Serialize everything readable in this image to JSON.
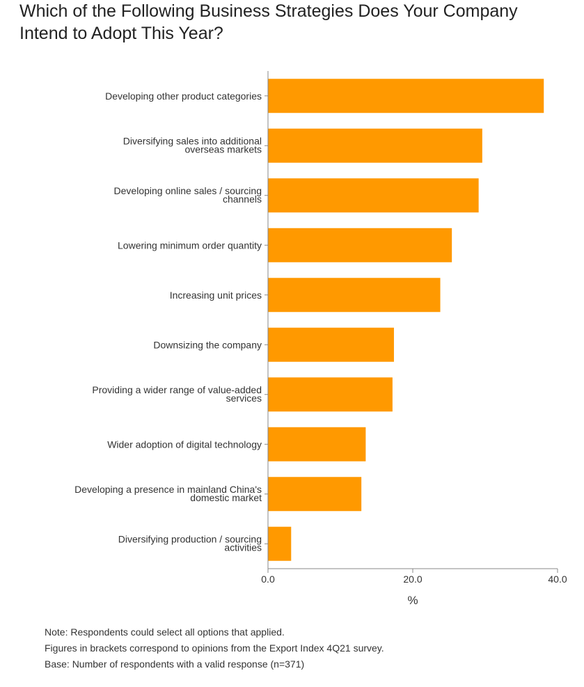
{
  "title": {
    "line1": "Which of the Following Business Strategies Does Your Company",
    "line2": "Intend to Adopt This Year?"
  },
  "colors": {
    "bar": "#FF9900",
    "axis": "#888888",
    "text": "#333333"
  },
  "chart_data": {
    "type": "bar",
    "orientation": "horizontal",
    "categories": [
      [
        "Developing other product categories"
      ],
      [
        "Diversifying sales into additional",
        "overseas markets"
      ],
      [
        "Developing online sales / sourcing",
        "channels"
      ],
      [
        "Lowering minimum order quantity"
      ],
      [
        "Increasing unit prices"
      ],
      [
        "Downsizing the company"
      ],
      [
        "Providing a wider range of value-added",
        "services"
      ],
      [
        "Wider adoption of digital technology"
      ],
      [
        "Developing a presence in mainland China's",
        "domestic market"
      ],
      [
        "Diversifying production / sourcing",
        "activities"
      ]
    ],
    "values": [
      38.1,
      29.6,
      29.1,
      25.4,
      23.8,
      17.4,
      17.2,
      13.5,
      12.9,
      3.2
    ],
    "xlim": [
      0,
      40
    ],
    "xticks": [
      0,
      20,
      40
    ],
    "xtick_labels": [
      "0.0",
      "20.0",
      "40.0"
    ],
    "xlabel": "%",
    "ylabel": "",
    "grid": false,
    "legend": "none"
  },
  "notes": [
    "Note: Respondents could select all options that applied.",
    "Figures in brackets correspond to opinions from the Export Index 4Q21 survey.",
    "Base: Number of respondents with a valid response (n=371)"
  ]
}
